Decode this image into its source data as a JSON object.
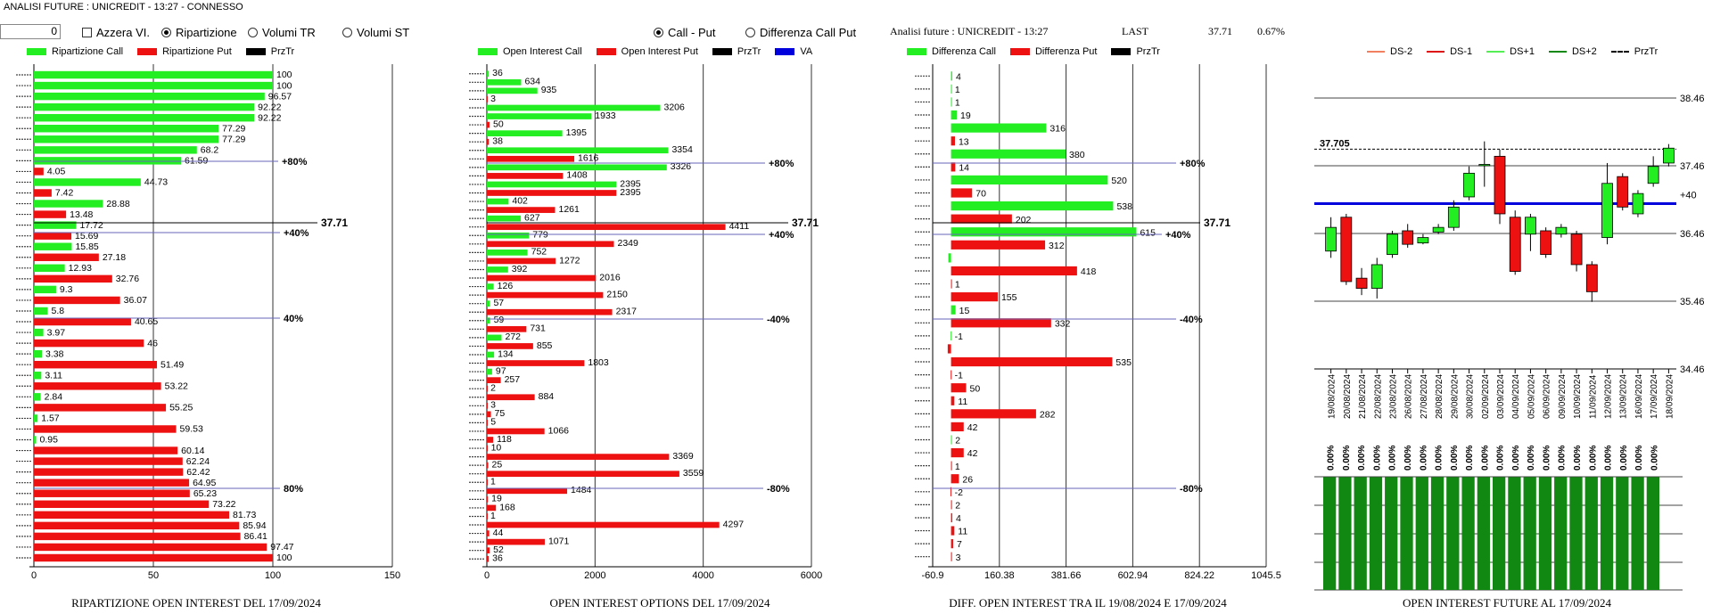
{
  "window_title": "ANALISI FUTURE : UNICREDIT - 13:27 - CONNESSO",
  "controls": {
    "spin_value": "0",
    "azzera_label": "Azzera VI.",
    "ripartizione_label": "Ripartizione",
    "volumi_tr_label": "Volumi TR",
    "volumi_st_label": "Volumi ST",
    "call_put_label": "Call - Put",
    "diff_call_put_label": "Differenza Call Put"
  },
  "info": {
    "label": "Analisi future : UNICREDIT - 13:27",
    "last_label": "LAST",
    "last_value": "37.71",
    "change": "0.67%"
  },
  "colors": {
    "green": "#22ee22",
    "red": "#ee1111",
    "blue": "#0000dd",
    "dark_green": "#118811",
    "line": "#6666bb"
  },
  "panels": {
    "p1": {
      "legend": [
        "Ripartizione Call",
        "Ripartizione Put",
        "PrzTr"
      ]
    },
    "p2": {
      "legend": [
        "Open Interest Call",
        "Open Interest Put",
        "PrzTr",
        "VA"
      ]
    },
    "p3": {
      "legend": [
        "Differenza Call",
        "Differenza Put",
        "PrzTr"
      ]
    },
    "p4": {
      "legend": [
        "DS-2",
        "DS-1",
        "DS+1",
        "DS+2",
        "PrzTr"
      ]
    }
  },
  "chart_data": [
    {
      "type": "bar",
      "title": "RIPARTIZIONE OPEN INTEREST DEL 17/09/2024",
      "xlim": [
        0,
        150
      ],
      "xticks": [
        "0",
        "50",
        "100",
        "150"
      ],
      "price_label": "37.71",
      "levels": [
        "+80%",
        "+40%",
        "40%",
        "80%"
      ],
      "bars": [
        {
          "v": 100,
          "c": "g",
          "l": "100"
        },
        {
          "v": 100,
          "c": "g",
          "l": "100"
        },
        {
          "v": 96.57,
          "c": "g",
          "l": "96.57"
        },
        {
          "v": 92.22,
          "c": "g",
          "l": "92.22"
        },
        {
          "v": 92.22,
          "c": "g",
          "l": "92.22"
        },
        {
          "v": 77.29,
          "c": "g",
          "l": "77.29"
        },
        {
          "v": 77.29,
          "c": "g",
          "l": "77.29"
        },
        {
          "v": 68.2,
          "c": "g",
          "l": "68.2"
        },
        {
          "v": 61.59,
          "c": "g",
          "l": "61.59"
        },
        {
          "v": 4.05,
          "c": "r",
          "l": "4.05"
        },
        {
          "v": 44.73,
          "c": "g",
          "l": "44.73"
        },
        {
          "v": 7.42,
          "c": "r",
          "l": "7.42"
        },
        {
          "v": 28.88,
          "c": "g",
          "l": "28.88"
        },
        {
          "v": 13.48,
          "c": "r",
          "l": "13.48"
        },
        {
          "v": 17.72,
          "c": "g",
          "l": "17.72"
        },
        {
          "v": 15.69,
          "c": "r",
          "l": "15.69"
        },
        {
          "v": 15.85,
          "c": "g",
          "l": "15.85"
        },
        {
          "v": 27.18,
          "c": "r",
          "l": "27.18"
        },
        {
          "v": 12.93,
          "c": "g",
          "l": "12.93"
        },
        {
          "v": 32.76,
          "c": "r",
          "l": "32.76"
        },
        {
          "v": 9.3,
          "c": "g",
          "l": "9.3"
        },
        {
          "v": 36.07,
          "c": "r",
          "l": "36.07"
        },
        {
          "v": 5.8,
          "c": "g",
          "l": "5.8"
        },
        {
          "v": 40.65,
          "c": "r",
          "l": "40.65"
        },
        {
          "v": 3.97,
          "c": "g",
          "l": "3.97"
        },
        {
          "v": 46,
          "c": "r",
          "l": "46"
        },
        {
          "v": 3.38,
          "c": "g",
          "l": "3.38"
        },
        {
          "v": 51.49,
          "c": "r",
          "l": "51.49"
        },
        {
          "v": 3.11,
          "c": "g",
          "l": "3.11"
        },
        {
          "v": 53.22,
          "c": "r",
          "l": "53.22"
        },
        {
          "v": 2.84,
          "c": "g",
          "l": "2.84"
        },
        {
          "v": 55.25,
          "c": "r",
          "l": "55.25"
        },
        {
          "v": 1.57,
          "c": "g",
          "l": "1.57"
        },
        {
          "v": 59.53,
          "c": "r",
          "l": "59.53"
        },
        {
          "v": 0.95,
          "c": "g",
          "l": "0.95"
        },
        {
          "v": 60.14,
          "c": "r",
          "l": "60.14"
        },
        {
          "v": 62.24,
          "c": "r",
          "l": "62.24"
        },
        {
          "v": 62.42,
          "c": "r",
          "l": "62.42"
        },
        {
          "v": 64.95,
          "c": "r",
          "l": "64.95"
        },
        {
          "v": 65.23,
          "c": "r",
          "l": "65.23"
        },
        {
          "v": 73.22,
          "c": "r",
          "l": "73.22"
        },
        {
          "v": 81.73,
          "c": "r",
          "l": "81.73"
        },
        {
          "v": 85.94,
          "c": "r",
          "l": "85.94"
        },
        {
          "v": 86.41,
          "c": "r",
          "l": "86.41"
        },
        {
          "v": 97.47,
          "c": "r",
          "l": "97.47"
        },
        {
          "v": 100,
          "c": "r",
          "l": "100"
        }
      ]
    },
    {
      "type": "bar",
      "title": "OPEN INTEREST OPTIONS DEL 17/09/2024",
      "xlim": [
        0,
        6000
      ],
      "xticks": [
        "0",
        "2000",
        "4000",
        "6000"
      ],
      "price_label": "37.71",
      "levels": [
        "+80%",
        "+40%",
        "-40%",
        "-80%"
      ],
      "bars": [
        {
          "v": 36,
          "c": "g",
          "l": "36"
        },
        {
          "v": 634,
          "c": "g",
          "l": "634"
        },
        {
          "v": 935,
          "c": "g",
          "l": "935"
        },
        {
          "v": 3,
          "c": "r",
          "l": "3"
        },
        {
          "v": 3206,
          "c": "g",
          "l": "3206"
        },
        {
          "v": 1933,
          "c": "g",
          "l": "1933"
        },
        {
          "v": 50,
          "c": "r",
          "l": "50"
        },
        {
          "v": 1395,
          "c": "g",
          "l": "1395"
        },
        {
          "v": 38,
          "c": "r",
          "l": "38"
        },
        {
          "v": 3354,
          "c": "g",
          "l": "3354"
        },
        {
          "v": 1616,
          "c": "r",
          "l": "1616"
        },
        {
          "v": 3326,
          "c": "g",
          "l": "3326"
        },
        {
          "v": 1408,
          "c": "r",
          "l": "1408"
        },
        {
          "v": 2395,
          "c": "g",
          "l": "2395"
        },
        {
          "v": 2395,
          "c": "r",
          "l": "2395"
        },
        {
          "v": 402,
          "c": "g",
          "l": "402"
        },
        {
          "v": 1261,
          "c": "r",
          "l": "1261"
        },
        {
          "v": 627,
          "c": "g",
          "l": "627"
        },
        {
          "v": 4411,
          "c": "r",
          "l": "4411"
        },
        {
          "v": 779,
          "c": "g",
          "l": "779"
        },
        {
          "v": 2349,
          "c": "r",
          "l": "2349"
        },
        {
          "v": 752,
          "c": "g",
          "l": "752"
        },
        {
          "v": 1272,
          "c": "r",
          "l": "1272"
        },
        {
          "v": 392,
          "c": "g",
          "l": "392"
        },
        {
          "v": 2016,
          "c": "r",
          "l": "2016"
        },
        {
          "v": 126,
          "c": "g",
          "l": "126"
        },
        {
          "v": 2150,
          "c": "r",
          "l": "2150"
        },
        {
          "v": 57,
          "c": "g",
          "l": "57"
        },
        {
          "v": 2317,
          "c": "r",
          "l": "2317"
        },
        {
          "v": 59,
          "c": "g",
          "l": "59"
        },
        {
          "v": 731,
          "c": "r",
          "l": "731"
        },
        {
          "v": 272,
          "c": "g",
          "l": "272"
        },
        {
          "v": 855,
          "c": "r",
          "l": "855"
        },
        {
          "v": 134,
          "c": "g",
          "l": "134"
        },
        {
          "v": 1803,
          "c": "r",
          "l": "1803"
        },
        {
          "v": 97,
          "c": "g",
          "l": "97"
        },
        {
          "v": 257,
          "c": "r",
          "l": "257"
        },
        {
          "v": 2,
          "c": "r",
          "l": "2"
        },
        {
          "v": 884,
          "c": "r",
          "l": "884"
        },
        {
          "v": 3,
          "c": "r",
          "l": "3"
        },
        {
          "v": 75,
          "c": "r",
          "l": "75"
        },
        {
          "v": 5,
          "c": "r",
          "l": "5"
        },
        {
          "v": 1066,
          "c": "r",
          "l": "1066"
        },
        {
          "v": 118,
          "c": "r",
          "l": "118"
        },
        {
          "v": 10,
          "c": "r",
          "l": "10"
        },
        {
          "v": 3369,
          "c": "r",
          "l": "3369"
        },
        {
          "v": 25,
          "c": "r",
          "l": "25"
        },
        {
          "v": 3559,
          "c": "r",
          "l": "3559"
        },
        {
          "v": 1,
          "c": "r",
          "l": "1"
        },
        {
          "v": 1484,
          "c": "r",
          "l": "1484"
        },
        {
          "v": 19,
          "c": "r",
          "l": "19"
        },
        {
          "v": 168,
          "c": "r",
          "l": "168"
        },
        {
          "v": 1,
          "c": "r",
          "l": "1"
        },
        {
          "v": 4297,
          "c": "r",
          "l": "4297"
        },
        {
          "v": 44,
          "c": "r",
          "l": "44"
        },
        {
          "v": 1071,
          "c": "r",
          "l": "1071"
        },
        {
          "v": 52,
          "c": "r",
          "l": "52"
        },
        {
          "v": 36,
          "c": "r",
          "l": "36"
        }
      ]
    },
    {
      "type": "bar",
      "title": "DIFF. OPEN INTEREST TRA IL 19/08/2024 E 17/09/2024",
      "xlim": [
        -60.9,
        1045.5
      ],
      "xticks": [
        "-60.9",
        "160.38",
        "381.66",
        "602.94",
        "824.22",
        "1045.5"
      ],
      "price_label": "37.71",
      "levels": [
        "+80%",
        "+40%",
        "-40%",
        "-80%"
      ],
      "bars": [
        {
          "v": 4,
          "c": "g",
          "l": "4"
        },
        {
          "v": 1,
          "c": "g",
          "l": "1"
        },
        {
          "v": 1,
          "c": "g",
          "l": "1"
        },
        {
          "v": 19,
          "c": "g",
          "l": "19"
        },
        {
          "v": 316,
          "c": "g",
          "l": "316"
        },
        {
          "v": 13,
          "c": "r",
          "l": "13"
        },
        {
          "v": 380,
          "c": "g",
          "l": "380"
        },
        {
          "v": 14,
          "c": "r",
          "l": "14"
        },
        {
          "v": 520,
          "c": "g",
          "l": "520"
        },
        {
          "v": 70,
          "c": "r",
          "l": "70"
        },
        {
          "v": 538,
          "c": "g",
          "l": "538"
        },
        {
          "v": 202,
          "c": "r",
          "l": "202"
        },
        {
          "v": 615,
          "c": "g",
          "l": "615"
        },
        {
          "v": 312,
          "c": "r",
          "l": "312"
        },
        {
          "v": -9,
          "c": "g",
          "l": ""
        },
        {
          "v": 418,
          "c": "r",
          "l": "418"
        },
        {
          "v": 1,
          "c": "r",
          "l": "1"
        },
        {
          "v": 155,
          "c": "r",
          "l": "155"
        },
        {
          "v": 15,
          "c": "g",
          "l": "15"
        },
        {
          "v": 332,
          "c": "r",
          "l": "332"
        },
        {
          "v": -1,
          "c": "g",
          "l": "-1"
        },
        {
          "v": -11,
          "c": "r",
          "l": ""
        },
        {
          "v": 535,
          "c": "r",
          "l": "535"
        },
        {
          "v": -1,
          "c": "r",
          "l": "-1"
        },
        {
          "v": 50,
          "c": "r",
          "l": "50"
        },
        {
          "v": 11,
          "c": "r",
          "l": "11"
        },
        {
          "v": 282,
          "c": "r",
          "l": "282"
        },
        {
          "v": 42,
          "c": "r",
          "l": "42"
        },
        {
          "v": 2,
          "c": "g",
          "l": "2"
        },
        {
          "v": 42,
          "c": "r",
          "l": "42"
        },
        {
          "v": 1,
          "c": "r",
          "l": "1"
        },
        {
          "v": 26,
          "c": "r",
          "l": "26"
        },
        {
          "v": -2,
          "c": "r",
          "l": "-2"
        },
        {
          "v": 2,
          "c": "r",
          "l": "2"
        },
        {
          "v": 4,
          "c": "r",
          "l": "4"
        },
        {
          "v": 11,
          "c": "r",
          "l": "11"
        },
        {
          "v": 7,
          "c": "r",
          "l": "7"
        },
        {
          "v": 3,
          "c": "r",
          "l": "3"
        }
      ]
    },
    {
      "type": "candlestick",
      "title": "OPEN INTEREST FUTURE AL 17/09/2024",
      "ylim": [
        34.46,
        38.46
      ],
      "yticks": [
        "38.46",
        "37.46",
        "36.46",
        "35.46",
        "34.46"
      ],
      "current_price_label": "37.705",
      "right_label": "+40",
      "blue_line": 36.9,
      "dates": [
        "19/08/2024",
        "20/08/2024",
        "21/08/2024",
        "22/08/2024",
        "23/08/2024",
        "26/08/2024",
        "27/08/2024",
        "28/08/2024",
        "29/08/2024",
        "30/08/2024",
        "02/09/2024",
        "03/09/2024",
        "04/09/2024",
        "05/09/2024",
        "06/09/2024",
        "09/09/2024",
        "10/09/2024",
        "11/09/2024",
        "12/09/2024",
        "13/09/2024",
        "16/09/2024",
        "17/09/2024",
        "18/09/2024"
      ],
      "candles": [
        {
          "o": 36.2,
          "c": 36.55,
          "h": 36.7,
          "l": 36.1
        },
        {
          "o": 36.7,
          "c": 35.75,
          "h": 36.75,
          "l": 35.7
        },
        {
          "o": 35.8,
          "c": 35.65,
          "h": 35.95,
          "l": 35.55
        },
        {
          "o": 35.65,
          "c": 36.0,
          "h": 36.1,
          "l": 35.5
        },
        {
          "o": 36.15,
          "c": 36.45,
          "h": 36.5,
          "l": 36.1
        },
        {
          "o": 36.5,
          "c": 36.3,
          "h": 36.6,
          "l": 36.25
        },
        {
          "o": 36.32,
          "c": 36.4,
          "h": 36.45,
          "l": 36.3
        },
        {
          "o": 36.48,
          "c": 36.55,
          "h": 36.6,
          "l": 36.45
        },
        {
          "o": 36.55,
          "c": 36.85,
          "h": 36.95,
          "l": 36.5
        },
        {
          "o": 37.0,
          "c": 37.35,
          "h": 37.45,
          "l": 36.95
        },
        {
          "o": 37.47,
          "c": 37.48,
          "h": 37.82,
          "l": 37.15
        },
        {
          "o": 37.6,
          "c": 36.75,
          "h": 37.7,
          "l": 36.6
        },
        {
          "o": 36.7,
          "c": 35.9,
          "h": 36.8,
          "l": 35.85
        },
        {
          "o": 36.45,
          "c": 36.7,
          "h": 36.75,
          "l": 36.2
        },
        {
          "o": 36.5,
          "c": 36.15,
          "h": 36.55,
          "l": 36.1
        },
        {
          "o": 36.45,
          "c": 36.55,
          "h": 36.6,
          "l": 36.4
        },
        {
          "o": 36.45,
          "c": 36.0,
          "h": 36.5,
          "l": 35.9
        },
        {
          "o": 36.0,
          "c": 35.6,
          "h": 36.05,
          "l": 35.45
        },
        {
          "o": 36.4,
          "c": 37.2,
          "h": 37.5,
          "l": 36.3
        },
        {
          "o": 37.3,
          "c": 36.85,
          "h": 37.35,
          "l": 36.8
        },
        {
          "o": 36.75,
          "c": 37.05,
          "h": 37.1,
          "l": 36.7
        },
        {
          "o": 37.2,
          "c": 37.45,
          "h": 37.6,
          "l": 37.15
        },
        {
          "o": 37.5,
          "c": 37.72,
          "h": 37.78,
          "l": 37.45
        }
      ],
      "oi_bars": {
        "values": [
          0.8,
          0.8,
          0.8,
          0.8,
          0.8,
          0.8,
          0.8,
          0.8,
          0.8,
          0.8,
          0.8,
          0.8,
          0.8,
          0.8,
          0.8,
          0.8,
          0.8,
          0.8,
          0.8,
          0.8,
          0.8,
          0.8
        ],
        "labels": [
          "0.00%",
          "0.00%",
          "0.00%",
          "0.00%",
          "0.00%",
          "0.00%",
          "0.00%",
          "0.00%",
          "0.00%",
          "0.00%",
          "0.00%",
          "0.00%",
          "0.00%",
          "0.00%",
          "0.00%",
          "0.00%",
          "0.00%",
          "0.00%",
          "0.00%",
          "0.00%",
          "0.00%",
          "0.00%"
        ]
      }
    }
  ]
}
